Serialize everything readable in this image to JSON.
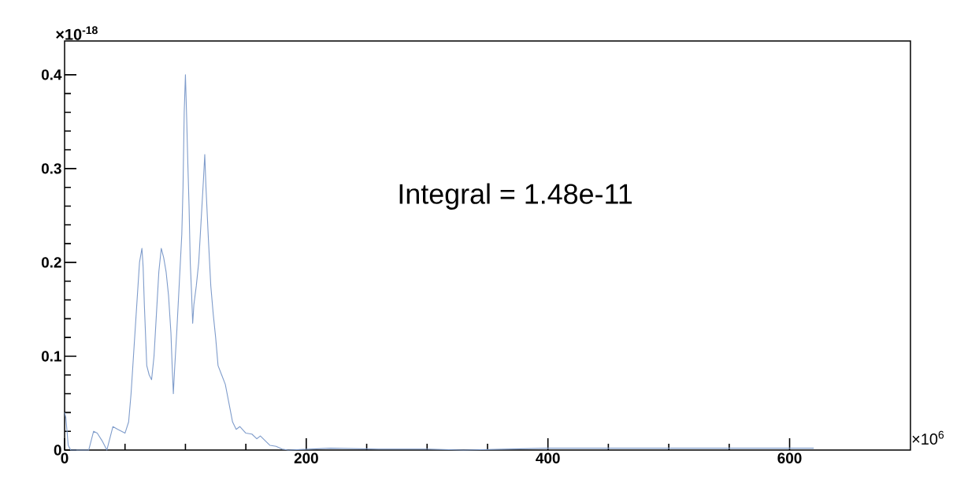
{
  "chart_data": {
    "type": "line",
    "xlabel": "×10$^{6}$",
    "ylabel": "×10$^{-18}$",
    "annotations": [
      "Integral = 1.48e-11"
    ],
    "xlim": [
      0,
      700
    ],
    "ylim": [
      0,
      0.436
    ],
    "xticks": [
      0,
      200,
      400,
      600
    ],
    "yticks": [
      0,
      0.1,
      0.2,
      0.3,
      0.4
    ],
    "grid": false,
    "marker": "none",
    "line_style": "solid",
    "series": [
      {
        "color": "#7f9ccb",
        "x": [
          0,
          1,
          3,
          5,
          20,
          24,
          27,
          31,
          35,
          40,
          44,
          50,
          53,
          55,
          57,
          59,
          60,
          62,
          64,
          65,
          66,
          68,
          70,
          72,
          74,
          76,
          78,
          80,
          82,
          84,
          86,
          88,
          89,
          90,
          91,
          93,
          95,
          97,
          98,
          99,
          100,
          101,
          102,
          103,
          104,
          105,
          106,
          107,
          109,
          111,
          113,
          115,
          116,
          117,
          119,
          121,
          123,
          125,
          127,
          130,
          133,
          136,
          139,
          142,
          145,
          150,
          155,
          159,
          162,
          166,
          170,
          175,
          180,
          185,
          220,
          260,
          300,
          330,
          400,
          500,
          580,
          620
        ],
        "values": [
          0.04,
          0.035,
          0.005,
          0,
          0,
          0.02,
          0.018,
          0.01,
          0,
          0.025,
          0.022,
          0.018,
          0.03,
          0.06,
          0.1,
          0.14,
          0.16,
          0.2,
          0.215,
          0.195,
          0.155,
          0.09,
          0.08,
          0.075,
          0.1,
          0.145,
          0.19,
          0.215,
          0.205,
          0.19,
          0.165,
          0.125,
          0.09,
          0.06,
          0.085,
          0.13,
          0.18,
          0.23,
          0.28,
          0.36,
          0.4,
          0.355,
          0.305,
          0.26,
          0.2,
          0.17,
          0.135,
          0.155,
          0.175,
          0.2,
          0.245,
          0.29,
          0.315,
          0.28,
          0.225,
          0.175,
          0.145,
          0.12,
          0.09,
          0.08,
          0.07,
          0.05,
          0.03,
          0.022,
          0.025,
          0.018,
          0.017,
          0.012,
          0.015,
          0.01,
          0.005,
          0.004,
          0.001,
          0,
          0.002,
          0.001,
          0.001,
          0,
          0.002,
          0.002,
          0.002,
          0.002
        ]
      }
    ]
  }
}
